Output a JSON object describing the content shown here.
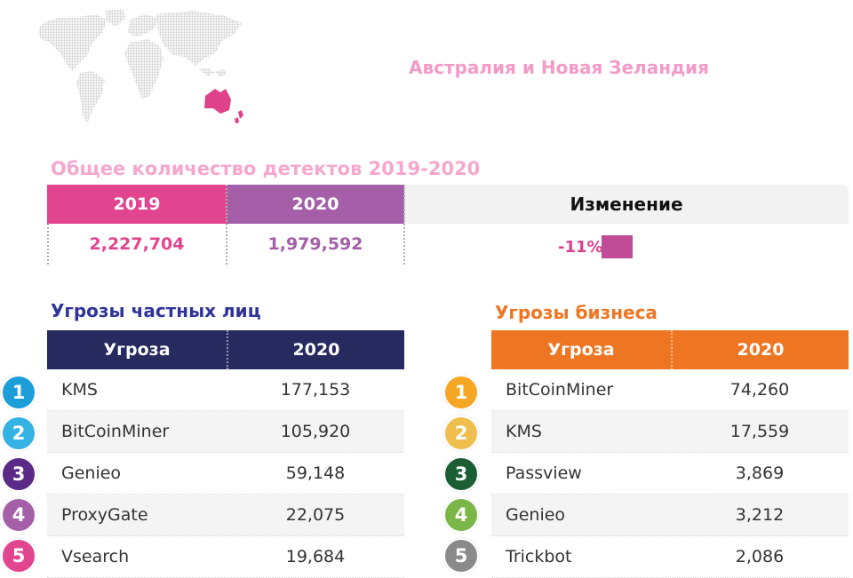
{
  "region": {
    "title": "Австралия и Новая Зеландия"
  },
  "map": {
    "land_color": "#d9d9d9",
    "highlight_color": "#e0418b",
    "icon": "world-map-icon"
  },
  "totals": {
    "title": "Общее количество детектов 2019-2020",
    "col_2019": "2019",
    "col_2020": "2020",
    "col_change": "Изменение",
    "val_2019": "2,227,704",
    "val_2020": "1,979,592",
    "val_change": "-11%"
  },
  "private": {
    "title": "Угрозы частных лиц",
    "header_color": "#262a5e",
    "col_threat": "Угроза",
    "col_year": "2020",
    "rows": [
      {
        "rank": "1",
        "name": "KMS",
        "value": "177,153",
        "badge": "#1d9ed9"
      },
      {
        "rank": "2",
        "name": "BitCoinMiner",
        "value": "105,920",
        "badge": "#35b2e4"
      },
      {
        "rank": "3",
        "name": "Genieo",
        "value": "59,148",
        "badge": "#5b2a86"
      },
      {
        "rank": "4",
        "name": "ProxyGate",
        "value": "22,075",
        "badge": "#a55fa9"
      },
      {
        "rank": "5",
        "name": "Vsearch",
        "value": "19,684",
        "badge": "#e2458f"
      }
    ]
  },
  "business": {
    "title": "Угрозы бизнеса",
    "header_color": "#ee7623",
    "col_threat": "Угроза",
    "col_year": "2020",
    "rows": [
      {
        "rank": "1",
        "name": "BitCoinMiner",
        "value": "74,260",
        "badge": "#f5a623"
      },
      {
        "rank": "2",
        "name": "KMS",
        "value": "17,559",
        "badge": "#efbe4c"
      },
      {
        "rank": "3",
        "name": "Passview",
        "value": "3,869",
        "badge": "#1b5e34"
      },
      {
        "rank": "4",
        "name": "Genieo",
        "value": "3,212",
        "badge": "#7ab648"
      },
      {
        "rank": "5",
        "name": "Trickbot",
        "value": "2,086",
        "badge": "#8a8a8a"
      }
    ]
  }
}
